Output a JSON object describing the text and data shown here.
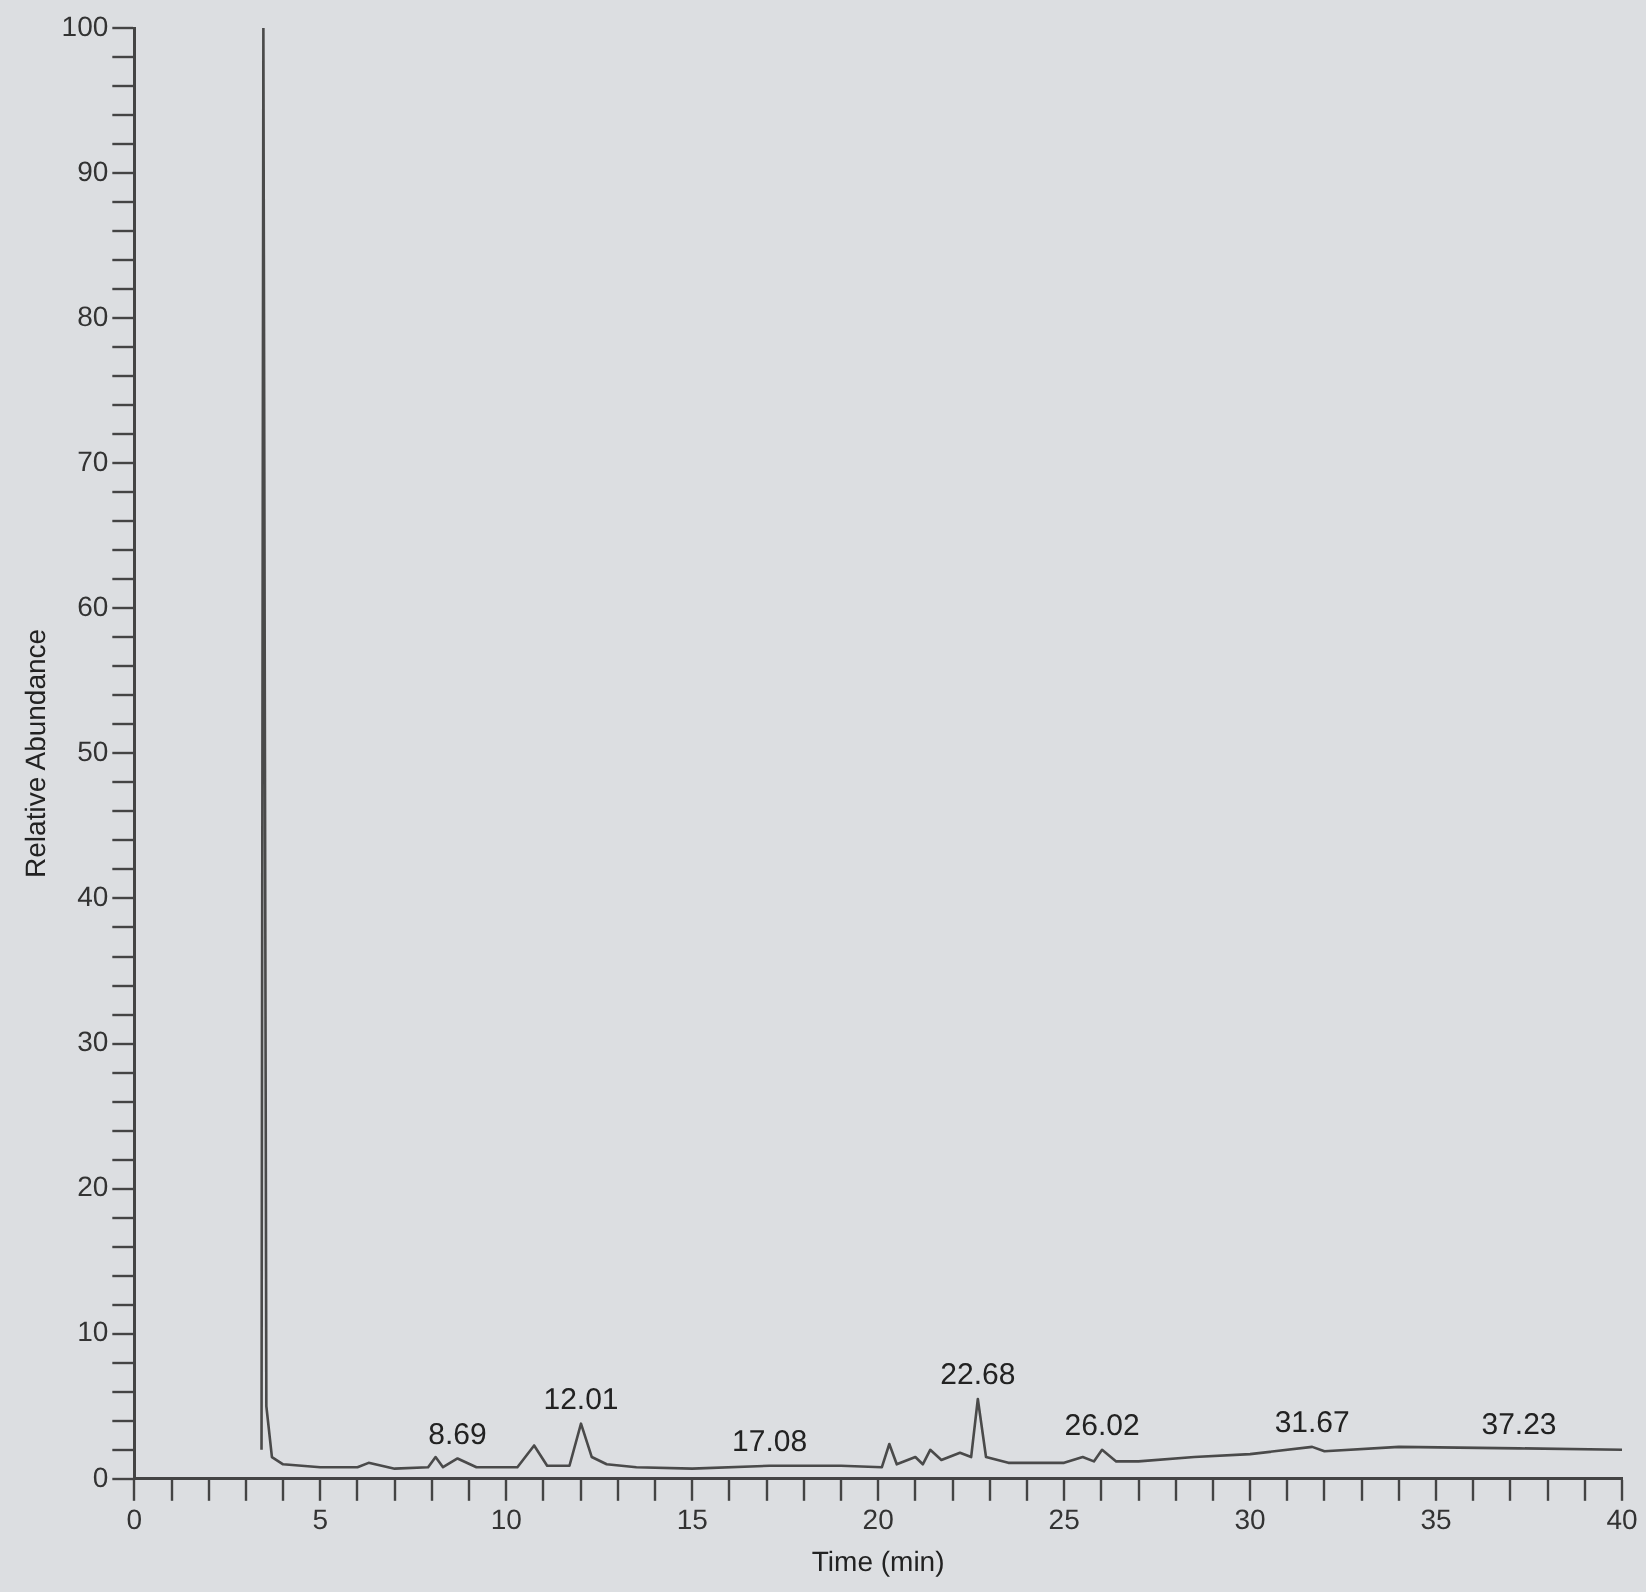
{
  "chart_data": {
    "type": "line",
    "xlabel": "Time (min)",
    "ylabel": "Relative Abundance",
    "x": [
      3.42,
      3.47,
      3.55,
      3.7,
      4,
      5,
      6,
      6.3,
      7,
      7.9,
      8.1,
      8.3,
      8.69,
      9.2,
      10.3,
      10.75,
      11.1,
      11.7,
      12.01,
      12.3,
      12.7,
      13.5,
      15,
      17.08,
      19,
      20.1,
      20.3,
      20.5,
      21,
      21.2,
      21.4,
      21.7,
      22.2,
      22.5,
      22.68,
      22.9,
      23.5,
      25,
      25.5,
      25.8,
      26.02,
      26.4,
      27,
      28.5,
      30,
      31.67,
      32,
      34,
      37.23,
      40
    ],
    "series": [
      {
        "color": "#4a4a4a",
        "values": [
          2,
          100,
          5,
          1.5,
          1.0,
          0.8,
          0.8,
          1.1,
          0.7,
          0.8,
          1.5,
          0.8,
          1.4,
          0.8,
          0.8,
          2.3,
          0.9,
          0.9,
          3.8,
          1.5,
          1.0,
          0.8,
          0.7,
          0.9,
          0.9,
          0.8,
          2.4,
          1.0,
          1.5,
          1.0,
          2.0,
          1.3,
          1.8,
          1.5,
          5.5,
          1.5,
          1.1,
          1.1,
          1.5,
          1.2,
          2.0,
          1.2,
          1.2,
          1.5,
          1.7,
          2.2,
          1.9,
          2.2,
          2.1,
          2.0
        ]
      }
    ],
    "xlim": [
      0,
      40
    ],
    "ylim": [
      0,
      100
    ],
    "xticks": [
      0,
      {
        "value": 1,
        "label": null
      },
      {
        "value": 2,
        "label": null
      },
      {
        "value": 3,
        "label": null
      },
      {
        "value": 4,
        "label": null
      },
      5,
      {
        "value": 6,
        "label": null
      },
      {
        "value": 7,
        "label": null
      },
      {
        "value": 8,
        "label": null
      },
      {
        "value": 9,
        "label": null
      },
      10,
      {
        "value": 11,
        "label": null
      },
      {
        "value": 12,
        "label": null
      },
      {
        "value": 13,
        "label": null
      },
      {
        "value": 14,
        "label": null
      },
      15,
      {
        "value": 16,
        "label": null
      },
      {
        "value": 17,
        "label": null
      },
      {
        "value": 18,
        "label": null
      },
      {
        "value": 19,
        "label": null
      },
      20,
      {
        "value": 21,
        "label": null
      },
      {
        "value": 22,
        "label": null
      },
      {
        "value": 23,
        "label": null
      },
      {
        "value": 24,
        "label": null
      },
      25,
      {
        "value": 26,
        "label": null
      },
      {
        "value": 27,
        "label": null
      },
      {
        "value": 28,
        "label": null
      },
      {
        "value": 29,
        "label": null
      },
      30,
      {
        "value": 31,
        "label": null
      },
      {
        "value": 32,
        "label": null
      },
      {
        "value": 33,
        "label": null
      },
      {
        "value": 34,
        "label": null
      },
      35,
      {
        "value": 36,
        "label": null
      },
      {
        "value": 37,
        "label": null
      },
      {
        "value": 38,
        "label": null
      },
      {
        "value": 39,
        "label": null
      },
      40
    ],
    "yticks": [
      0,
      {
        "value": 2,
        "label": null
      },
      {
        "value": 4,
        "label": null
      },
      {
        "value": 6,
        "label": null
      },
      {
        "value": 8,
        "label": null
      },
      10,
      {
        "value": 12,
        "label": null
      },
      {
        "value": 14,
        "label": null
      },
      {
        "value": 16,
        "label": null
      },
      {
        "value": 18,
        "label": null
      },
      20,
      {
        "value": 22,
        "label": null
      },
      {
        "value": 24,
        "label": null
      },
      {
        "value": 26,
        "label": null
      },
      {
        "value": 28,
        "label": null
      },
      30,
      {
        "value": 32,
        "label": null
      },
      {
        "value": 34,
        "label": null
      },
      {
        "value": 36,
        "label": null
      },
      {
        "value": 38,
        "label": null
      },
      40,
      {
        "value": 42,
        "label": null
      },
      {
        "value": 44,
        "label": null
      },
      {
        "value": 46,
        "label": null
      },
      {
        "value": 48,
        "label": null
      },
      50,
      {
        "value": 52,
        "label": null
      },
      {
        "value": 54,
        "label": null
      },
      {
        "value": 56,
        "label": null
      },
      {
        "value": 58,
        "label": null
      },
      60,
      {
        "value": 62,
        "label": null
      },
      {
        "value": 64,
        "label": null
      },
      {
        "value": 66,
        "label": null
      },
      {
        "value": 68,
        "label": null
      },
      70,
      {
        "value": 72,
        "label": null
      },
      {
        "value": 74,
        "label": null
      },
      {
        "value": 76,
        "label": null
      },
      {
        "value": 78,
        "label": null
      },
      80,
      {
        "value": 82,
        "label": null
      },
      {
        "value": 84,
        "label": null
      },
      {
        "value": 86,
        "label": null
      },
      {
        "value": 88,
        "label": null
      },
      90,
      {
        "value": 92,
        "label": null
      },
      {
        "value": 94,
        "label": null
      },
      {
        "value": 96,
        "label": null
      },
      {
        "value": 98,
        "label": null
      },
      100
    ],
    "annotations": [
      {
        "text": "8.69",
        "x": 8.69,
        "y": 1.4
      },
      {
        "text": "12.01",
        "x": 12.01,
        "y": 3.8
      },
      {
        "text": "17.08",
        "x": 17.08,
        "y": 0.9
      },
      {
        "text": "22.68",
        "x": 22.68,
        "y": 5.5
      },
      {
        "text": "26.02",
        "x": 26.02,
        "y": 2.0
      },
      {
        "text": "31.67",
        "x": 31.67,
        "y": 2.2
      },
      {
        "text": "37.23",
        "x": 37.23,
        "y": 2.1
      }
    ],
    "grid": false,
    "legend": false,
    "marker": "none",
    "line_style": "solid"
  }
}
